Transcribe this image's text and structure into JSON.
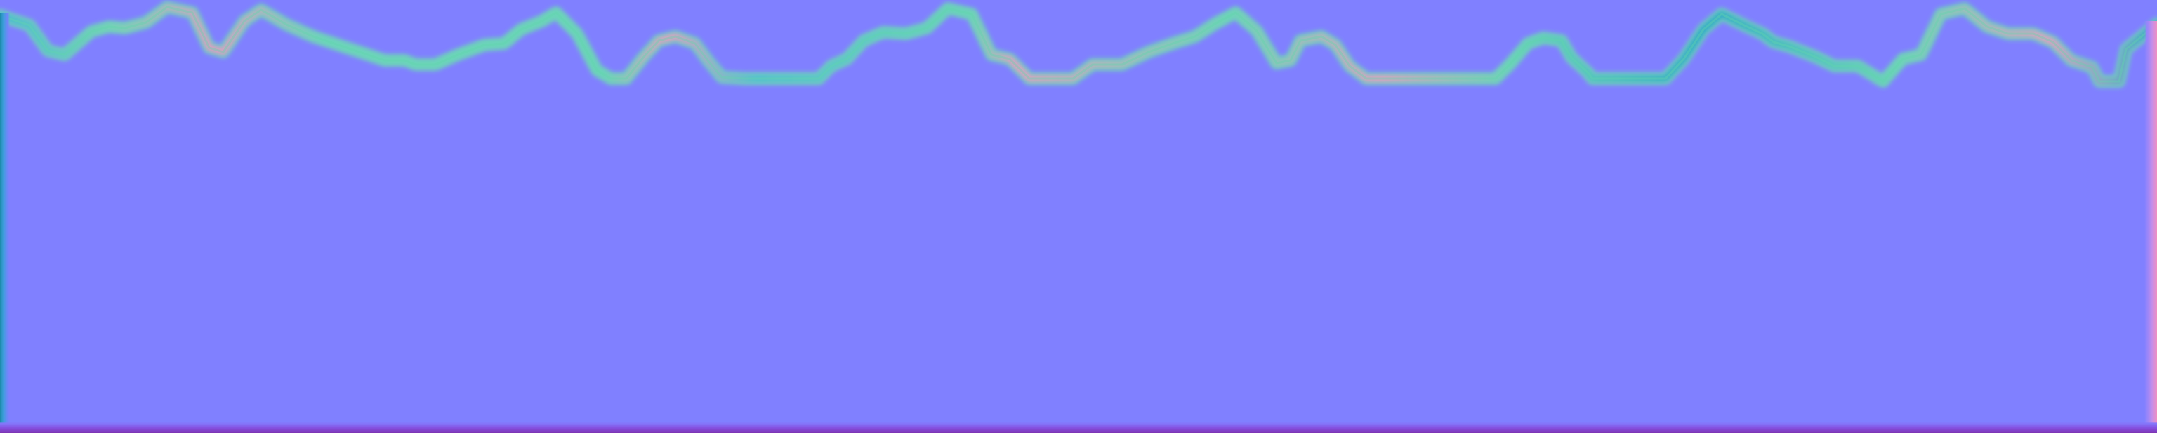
{
  "image": {
    "kind": "normal-map texture",
    "background_color": "#8080ff",
    "edge_colors": {
      "ridge_green": "#67d7b4",
      "ridge_blue": "#2aa7c7",
      "ridge_pink": "#f09ac2",
      "left_edge": "#1b8aa8",
      "right_edge": "#f08fc0",
      "bottom_edge": "#7e35b3"
    }
  }
}
